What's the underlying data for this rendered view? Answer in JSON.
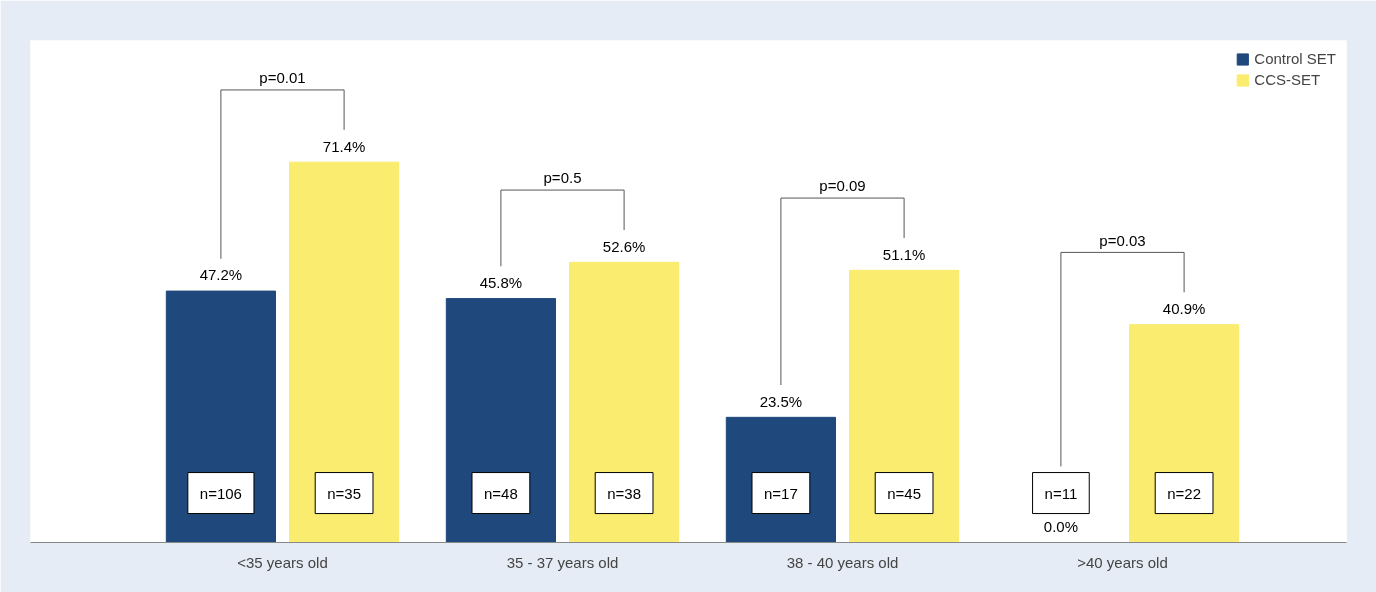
{
  "chart_data": {
    "type": "bar",
    "categories": [
      "<35 years old",
      "35 - 37 years old",
      "38 - 40 years old",
      ">40 years old"
    ],
    "series": [
      {
        "name": "Control SET",
        "color": "#1f497d",
        "values": [
          47.2,
          45.8,
          23.5,
          0.0
        ],
        "value_labels": [
          "47.2%",
          "45.8%",
          "23.5%",
          "0.0%"
        ]
      },
      {
        "name": "CCS-SET",
        "color": "#f9ec6e",
        "values": [
          71.4,
          52.6,
          51.1,
          40.9
        ],
        "value_labels": [
          "71.4%",
          "52.6%",
          "51.1%",
          "40.9%"
        ]
      }
    ],
    "annotations": [
      "n=106",
      "n=35",
      "n=48",
      "n=38",
      "n=17",
      "n=45",
      "n=11",
      "n=22",
      "p=0.01",
      "p=0.5",
      "p=0.09",
      "p=0.03"
    ],
    "grid": false,
    "legend": "top right",
    "tick_labels": "x"
  }
}
